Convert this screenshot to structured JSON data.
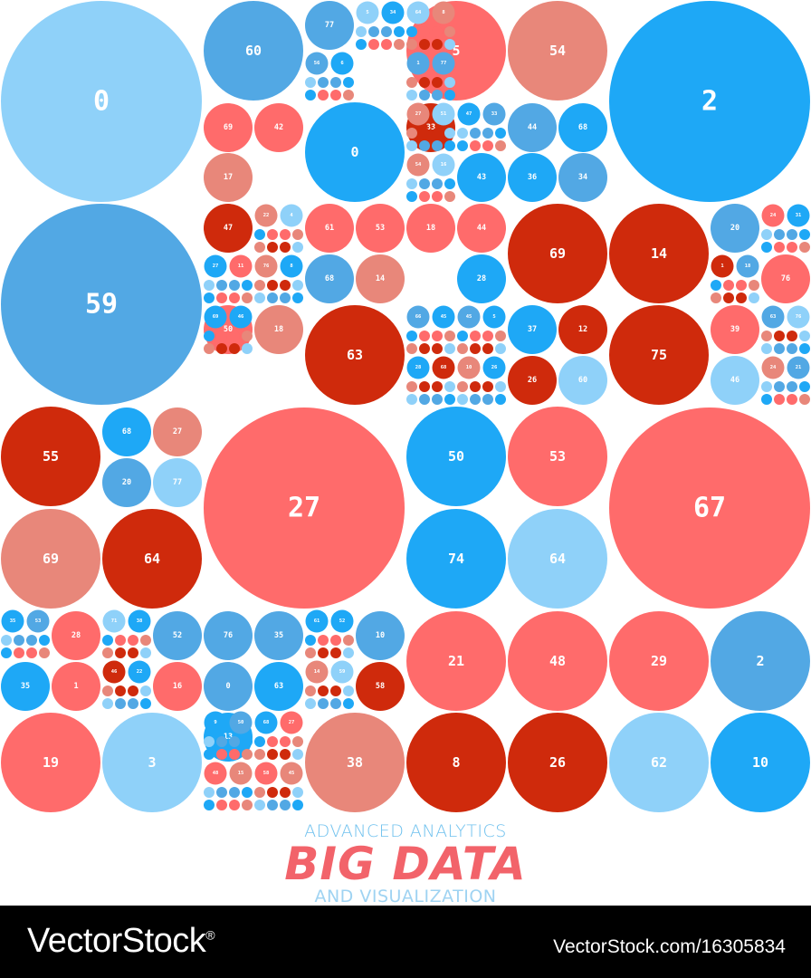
{
  "heading": {
    "top_line": "ADVANCED ANALYTICS",
    "title": "BIG DATA",
    "bottom_line": "AND VISUALIZATION"
  },
  "footer": {
    "brand": "VectorStock",
    "registered_mark": "®",
    "stock_id": "VectorStock.com/16305834"
  },
  "colors": {
    "A": "#8fd1f9",
    "B": "#52a8e4",
    "C": "#1ea8f6",
    "D": "#ff6b6b",
    "E": "#e8877a",
    "F": "#cf2a0c"
  },
  "bubbles": {
    "large": [
      {
        "label": "0",
        "color": "A"
      },
      {
        "label": "2",
        "color": "C"
      },
      {
        "label": "59",
        "color": "B"
      },
      {
        "label": "27",
        "color": "D"
      },
      {
        "label": "67",
        "color": "D"
      }
    ],
    "medium": [
      {
        "label": "60",
        "color": "B"
      },
      {
        "label": "5",
        "color": "D"
      },
      {
        "label": "54",
        "color": "E"
      },
      {
        "label": "0",
        "color": "C"
      },
      {
        "label": "63",
        "color": "F"
      },
      {
        "label": "69",
        "color": "F"
      },
      {
        "label": "14",
        "color": "F"
      },
      {
        "label": "75",
        "color": "F"
      },
      {
        "label": "55",
        "color": "F"
      },
      {
        "label": "69",
        "color": "E"
      },
      {
        "label": "64",
        "color": "F"
      },
      {
        "label": "50",
        "color": "C"
      },
      {
        "label": "53",
        "color": "D"
      },
      {
        "label": "74",
        "color": "C"
      },
      {
        "label": "64",
        "color": "A"
      },
      {
        "label": "21",
        "color": "D"
      },
      {
        "label": "48",
        "color": "D"
      },
      {
        "label": "29",
        "color": "D"
      },
      {
        "label": "2",
        "color": "B"
      },
      {
        "label": "19",
        "color": "D"
      },
      {
        "label": "3",
        "color": "A"
      },
      {
        "label": "38",
        "color": "E"
      },
      {
        "label": "8",
        "color": "F"
      },
      {
        "label": "26",
        "color": "F"
      },
      {
        "label": "62",
        "color": "A"
      },
      {
        "label": "10",
        "color": "C"
      }
    ],
    "small": [
      {
        "label": "77",
        "color": "B"
      },
      {
        "label": "69",
        "color": "D"
      },
      {
        "label": "42",
        "color": "D"
      },
      {
        "label": "17",
        "color": "E"
      },
      {
        "label": "33",
        "color": "F"
      },
      {
        "label": "44",
        "color": "B"
      },
      {
        "label": "68",
        "color": "C"
      },
      {
        "label": "43",
        "color": "C"
      },
      {
        "label": "36",
        "color": "C"
      },
      {
        "label": "34",
        "color": "B"
      },
      {
        "label": "47",
        "color": "F"
      },
      {
        "label": "61",
        "color": "D"
      },
      {
        "label": "53",
        "color": "D"
      },
      {
        "label": "18",
        "color": "D"
      },
      {
        "label": "44",
        "color": "D"
      },
      {
        "label": "20",
        "color": "B"
      },
      {
        "label": "68",
        "color": "B"
      },
      {
        "label": "14",
        "color": "E"
      },
      {
        "label": "28",
        "color": "C"
      },
      {
        "label": "76",
        "color": "D"
      },
      {
        "label": "50",
        "color": "D"
      },
      {
        "label": "18",
        "color": "E"
      },
      {
        "label": "37",
        "color": "C"
      },
      {
        "label": "12",
        "color": "F"
      },
      {
        "label": "39",
        "color": "D"
      },
      {
        "label": "26",
        "color": "F"
      },
      {
        "label": "60",
        "color": "A"
      },
      {
        "label": "46",
        "color": "A"
      },
      {
        "label": "68",
        "color": "C"
      },
      {
        "label": "27",
        "color": "E"
      },
      {
        "label": "20",
        "color": "B"
      },
      {
        "label": "77",
        "color": "A"
      },
      {
        "label": "28",
        "color": "D"
      },
      {
        "label": "52",
        "color": "B"
      },
      {
        "label": "76",
        "color": "B"
      },
      {
        "label": "35",
        "color": "B"
      },
      {
        "label": "10",
        "color": "B"
      },
      {
        "label": "35",
        "color": "C"
      },
      {
        "label": "1",
        "color": "D"
      },
      {
        "label": "16",
        "color": "D"
      },
      {
        "label": "0",
        "color": "B"
      },
      {
        "label": "63",
        "color": "C"
      },
      {
        "label": "58",
        "color": "F"
      },
      {
        "label": "13",
        "color": "C"
      }
    ],
    "tiny": [
      {
        "label": "5",
        "color": "A"
      },
      {
        "label": "34",
        "color": "C"
      },
      {
        "label": "64",
        "color": "A"
      },
      {
        "label": "8",
        "color": "E"
      },
      {
        "label": "1",
        "color": "B"
      },
      {
        "label": "77",
        "color": "B"
      },
      {
        "label": "56",
        "color": "B"
      },
      {
        "label": "6",
        "color": "C"
      },
      {
        "label": "22",
        "color": "E"
      },
      {
        "label": "4",
        "color": "A"
      },
      {
        "label": "76",
        "color": "E"
      },
      {
        "label": "8",
        "color": "C"
      },
      {
        "label": "27",
        "color": "C"
      },
      {
        "label": "11",
        "color": "D"
      },
      {
        "label": "69",
        "color": "C"
      },
      {
        "label": "46",
        "color": "C"
      },
      {
        "label": "27",
        "color": "E"
      },
      {
        "label": "51",
        "color": "A"
      },
      {
        "label": "54",
        "color": "E"
      },
      {
        "label": "16",
        "color": "A"
      },
      {
        "label": "66",
        "color": "B"
      },
      {
        "label": "45",
        "color": "C"
      },
      {
        "label": "28",
        "color": "C"
      },
      {
        "label": "68",
        "color": "F"
      },
      {
        "label": "47",
        "color": "C"
      },
      {
        "label": "33",
        "color": "B"
      },
      {
        "label": "45",
        "color": "B"
      },
      {
        "label": "5",
        "color": "C"
      },
      {
        "label": "10",
        "color": "E"
      },
      {
        "label": "26",
        "color": "C"
      },
      {
        "label": "24",
        "color": "D"
      },
      {
        "label": "31",
        "color": "C"
      },
      {
        "label": "1",
        "color": "F"
      },
      {
        "label": "18",
        "color": "B"
      },
      {
        "label": "63",
        "color": "B"
      },
      {
        "label": "76",
        "color": "A"
      },
      {
        "label": "24",
        "color": "E"
      },
      {
        "label": "21",
        "color": "B"
      },
      {
        "label": "61",
        "color": "C"
      },
      {
        "label": "52",
        "color": "C"
      },
      {
        "label": "14",
        "color": "E"
      },
      {
        "label": "59",
        "color": "A"
      },
      {
        "label": "35",
        "color": "C"
      },
      {
        "label": "53",
        "color": "B"
      },
      {
        "label": "71",
        "color": "A"
      },
      {
        "label": "38",
        "color": "C"
      },
      {
        "label": "46",
        "color": "F"
      },
      {
        "label": "22",
        "color": "C"
      },
      {
        "label": "9",
        "color": "C"
      },
      {
        "label": "50",
        "color": "B"
      },
      {
        "label": "68",
        "color": "C"
      },
      {
        "label": "27",
        "color": "D"
      },
      {
        "label": "58",
        "color": "D"
      },
      {
        "label": "45",
        "color": "E"
      },
      {
        "label": "48",
        "color": "D"
      },
      {
        "label": "15",
        "color": "E"
      },
      {
        "label": "48",
        "color": "D"
      },
      {
        "label": "38",
        "color": "B"
      },
      {
        "label": "23",
        "color": "E"
      },
      {
        "label": "60",
        "color": "C"
      },
      {
        "label": "21",
        "color": "E"
      },
      {
        "label": "48",
        "color": "C"
      },
      {
        "label": "51",
        "color": "B"
      },
      {
        "label": "11",
        "color": "C"
      },
      {
        "label": "14",
        "color": "E"
      },
      {
        "label": "65",
        "color": "A"
      },
      {
        "label": "22",
        "color": "D"
      },
      {
        "label": "74",
        "color": "C"
      },
      {
        "label": "16",
        "color": "B"
      },
      {
        "label": "48",
        "color": "F"
      },
      {
        "label": "11",
        "color": "E"
      },
      {
        "label": "0",
        "color": "D"
      },
      {
        "label": "33",
        "color": "D"
      },
      {
        "label": "55",
        "color": "F"
      },
      {
        "label": "44",
        "color": "E"
      },
      {
        "label": "20",
        "color": "D"
      }
    ]
  }
}
